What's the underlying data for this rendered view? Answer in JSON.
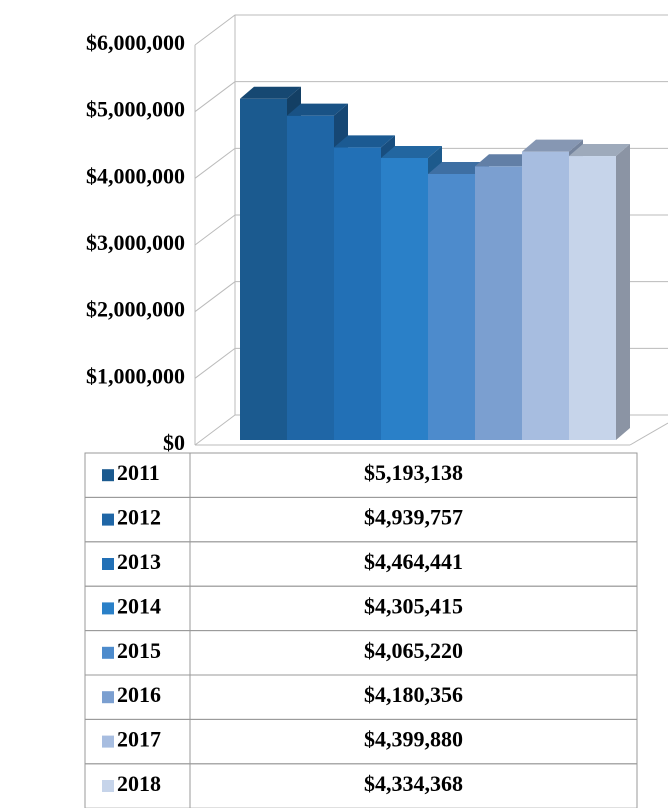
{
  "chart_data": {
    "type": "bar",
    "categories": [
      "2011",
      "2012",
      "2013",
      "2014",
      "2015",
      "2016",
      "2017",
      "2018"
    ],
    "values": [
      5193138,
      4939757,
      4464441,
      4305415,
      4065220,
      4180356,
      4399880,
      4334368
    ],
    "value_labels": [
      "$5,193,138",
      "$4,939,757",
      "$4,464,441",
      "$4,305,415",
      "$4,065,220",
      "$4,180,356",
      "$4,399,880",
      "$4,334,368"
    ],
    "colors": [
      "#1b5a8f",
      "#1f66a6",
      "#2270b6",
      "#2a80c8",
      "#4d8bcc",
      "#7b9fd0",
      "#a7bde0",
      "#c6d4ea"
    ],
    "ylim": [
      0,
      6000000
    ],
    "yticks": [
      {
        "value": 0,
        "label": "$0"
      },
      {
        "value": 1000000,
        "label": "$1,000,000"
      },
      {
        "value": 2000000,
        "label": "$2,000,000"
      },
      {
        "value": 3000000,
        "label": "$3,000,000"
      },
      {
        "value": 4000000,
        "label": "$4,000,000"
      },
      {
        "value": 5000000,
        "label": "$5,000,000"
      },
      {
        "value": 6000000,
        "label": "$6,000,000"
      }
    ],
    "grid": true
  }
}
